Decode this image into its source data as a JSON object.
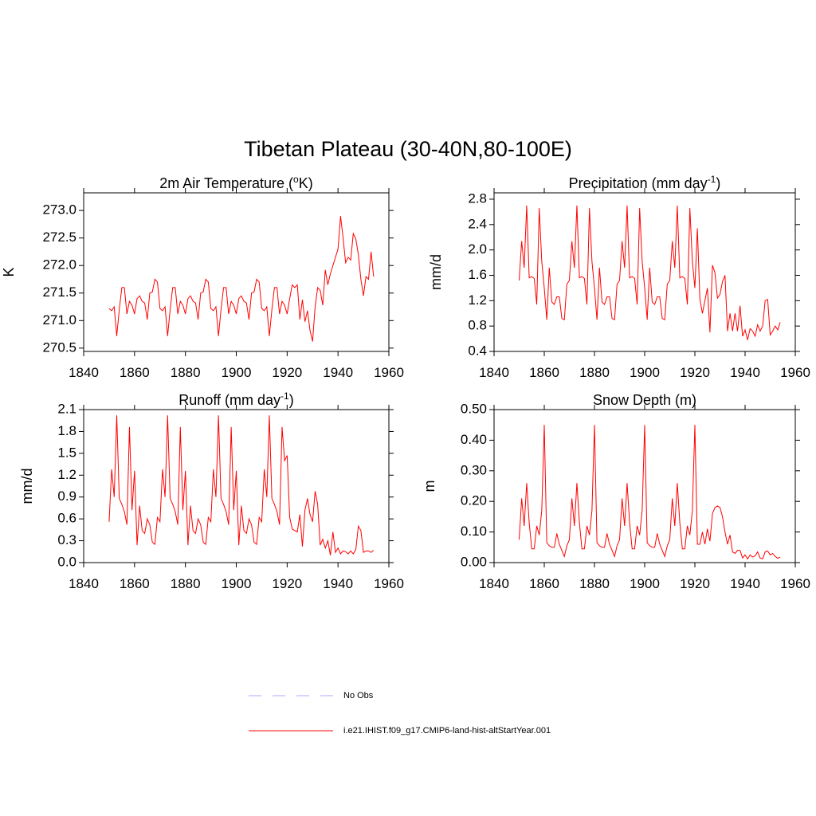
{
  "title": "Tibetan Plateau (30-40N,80-100E)",
  "legend": [
    {
      "name": "No Obs",
      "color": "#aaaaff",
      "dash": true
    },
    {
      "name": "i.e21.IHIST.f09_g17.CMIP6-land-hist-altStartYear.001",
      "color": "#ff0000",
      "dash": false
    }
  ],
  "chart_data": [
    {
      "type": "line",
      "title": [
        "2m Air Temperature (",
        "o",
        "K)"
      ],
      "y_label": "K",
      "x": [
        1850,
        1851,
        1852,
        1853,
        1854,
        1855,
        1856,
        1857,
        1858,
        1859,
        1860,
        1861,
        1862,
        1863,
        1864,
        1865,
        1866,
        1867,
        1868,
        1869,
        1870,
        1871,
        1872,
        1873,
        1874,
        1875,
        1876,
        1877,
        1878,
        1879,
        1880,
        1881,
        1882,
        1883,
        1884,
        1885,
        1886,
        1887,
        1888,
        1889,
        1890,
        1891,
        1892,
        1893,
        1894,
        1895,
        1896,
        1897,
        1898,
        1899,
        1900,
        1901,
        1902,
        1903,
        1904,
        1905,
        1906,
        1907,
        1908,
        1909,
        1910,
        1911,
        1912,
        1913,
        1914,
        1915,
        1916,
        1917,
        1918,
        1919,
        1920,
        1921,
        1922,
        1923,
        1924,
        1925,
        1926,
        1927,
        1928,
        1929,
        1930,
        1931,
        1932,
        1933,
        1934,
        1935,
        1936,
        1937,
        1938,
        1939,
        1940,
        1941,
        1942,
        1943,
        1944,
        1945,
        1946,
        1947,
        1948,
        1949,
        1950,
        1951,
        1952,
        1953,
        1954
      ],
      "series": [
        {
          "color": "#ff0000",
          "values": [
            271.22,
            271.18,
            271.25,
            270.72,
            271.2,
            271.6,
            271.6,
            271.12,
            271.35,
            271.28,
            271.12,
            271.4,
            271.45,
            271.35,
            271.32,
            271.02,
            271.5,
            271.52,
            271.75,
            271.7,
            271.22,
            271.18,
            271.25,
            270.72,
            271.2,
            271.6,
            271.6,
            271.12,
            271.35,
            271.28,
            271.12,
            271.4,
            271.45,
            271.35,
            271.32,
            271.02,
            271.5,
            271.52,
            271.75,
            271.7,
            271.22,
            271.18,
            271.25,
            270.72,
            271.2,
            271.6,
            271.6,
            271.12,
            271.35,
            271.28,
            271.12,
            271.4,
            271.45,
            271.35,
            271.32,
            271.02,
            271.5,
            271.52,
            271.75,
            271.7,
            271.22,
            271.18,
            271.25,
            270.72,
            271.2,
            271.6,
            271.6,
            271.12,
            271.35,
            271.28,
            271.12,
            271.4,
            271.65,
            271.6,
            271.65,
            271.02,
            271.38,
            270.98,
            271.18,
            270.82,
            270.62,
            271.25,
            271.6,
            271.55,
            271.28,
            271.92,
            271.65,
            271.85,
            272.0,
            272.15,
            272.3,
            272.9,
            272.5,
            272.05,
            272.15,
            272.1,
            272.58,
            272.48,
            272.2,
            271.75,
            271.45,
            271.8,
            271.75,
            272.25,
            271.8
          ]
        }
      ],
      "xlim": [
        1840,
        1960
      ],
      "xticks": [
        1840,
        1860,
        1880,
        1900,
        1920,
        1940,
        1960
      ],
      "ylim": [
        270.44,
        273.32
      ],
      "yticks": [
        270.5,
        {
          "value": 271,
          "label": "271.0"
        },
        271.5,
        {
          "value": 272,
          "label": "272.0"
        },
        272.5,
        {
          "value": 273,
          "label": "273.0"
        }
      ]
    },
    {
      "type": "line",
      "title": [
        "Precipitation (mm day",
        "-1",
        ")"
      ],
      "y_label": "mm/d",
      "x": [
        1850,
        1851,
        1852,
        1853,
        1854,
        1855,
        1856,
        1857,
        1858,
        1859,
        1860,
        1861,
        1862,
        1863,
        1864,
        1865,
        1866,
        1867,
        1868,
        1869,
        1870,
        1871,
        1872,
        1873,
        1874,
        1875,
        1876,
        1877,
        1878,
        1879,
        1880,
        1881,
        1882,
        1883,
        1884,
        1885,
        1886,
        1887,
        1888,
        1889,
        1890,
        1891,
        1892,
        1893,
        1894,
        1895,
        1896,
        1897,
        1898,
        1899,
        1900,
        1901,
        1902,
        1903,
        1904,
        1905,
        1906,
        1907,
        1908,
        1909,
        1910,
        1911,
        1912,
        1913,
        1914,
        1915,
        1916,
        1917,
        1918,
        1919,
        1920,
        1921,
        1922,
        1923,
        1924,
        1925,
        1926,
        1927,
        1928,
        1929,
        1930,
        1931,
        1932,
        1933,
        1934,
        1935,
        1936,
        1937,
        1938,
        1939,
        1940,
        1941,
        1942,
        1943,
        1944,
        1945,
        1946,
        1947,
        1948,
        1949,
        1950,
        1951,
        1952,
        1953,
        1954
      ],
      "series": [
        {
          "color": "#ff0000",
          "values": [
            1.52,
            2.14,
            1.72,
            2.7,
            1.56,
            1.58,
            1.55,
            1.14,
            2.66,
            1.82,
            1.4,
            0.9,
            1.72,
            1.18,
            1.14,
            1.26,
            1.26,
            0.92,
            0.9,
            1.46,
            1.52,
            2.14,
            1.72,
            2.7,
            1.56,
            1.58,
            1.55,
            1.14,
            2.66,
            1.82,
            1.4,
            0.9,
            1.72,
            1.18,
            1.14,
            1.26,
            1.26,
            0.92,
            0.9,
            1.46,
            1.52,
            2.14,
            1.72,
            2.7,
            1.56,
            1.58,
            1.55,
            1.14,
            2.66,
            1.82,
            1.4,
            0.9,
            1.72,
            1.18,
            1.14,
            1.26,
            1.26,
            0.92,
            0.9,
            1.46,
            1.52,
            2.14,
            1.72,
            2.7,
            1.56,
            1.58,
            1.55,
            1.14,
            2.66,
            1.82,
            1.4,
            2.34,
            1.22,
            1.0,
            1.2,
            1.4,
            0.7,
            1.76,
            1.64,
            1.24,
            1.3,
            1.5,
            1.6,
            0.72,
            1.0,
            0.72,
            1.0,
            0.72,
            1.12,
            0.64,
            0.74,
            0.58,
            0.76,
            0.72,
            0.64,
            0.82,
            0.72,
            0.8,
            1.2,
            1.22,
            0.66,
            0.72,
            0.8,
            0.74,
            0.86
          ]
        }
      ],
      "xlim": [
        1840,
        1960
      ],
      "xticks": [
        1840,
        1860,
        1880,
        1900,
        1920,
        1940,
        1960
      ],
      "ylim": [
        0.4,
        2.9
      ],
      "yticks": [
        0.4,
        0.8,
        1.2,
        1.6,
        {
          "value": 2,
          "label": "2.0"
        },
        2.4,
        2.8
      ]
    },
    {
      "type": "line",
      "title": [
        "Runoff (mm day",
        "-1",
        ")"
      ],
      "y_label": "mm/d",
      "x": [
        1850,
        1851,
        1852,
        1853,
        1854,
        1855,
        1856,
        1857,
        1858,
        1859,
        1860,
        1861,
        1862,
        1863,
        1864,
        1865,
        1866,
        1867,
        1868,
        1869,
        1870,
        1871,
        1872,
        1873,
        1874,
        1875,
        1876,
        1877,
        1878,
        1879,
        1880,
        1881,
        1882,
        1883,
        1884,
        1885,
        1886,
        1887,
        1888,
        1889,
        1890,
        1891,
        1892,
        1893,
        1894,
        1895,
        1896,
        1897,
        1898,
        1899,
        1900,
        1901,
        1902,
        1903,
        1904,
        1905,
        1906,
        1907,
        1908,
        1909,
        1910,
        1911,
        1912,
        1913,
        1914,
        1915,
        1916,
        1917,
        1918,
        1919,
        1920,
        1921,
        1922,
        1923,
        1924,
        1925,
        1926,
        1927,
        1928,
        1929,
        1930,
        1931,
        1932,
        1933,
        1934,
        1935,
        1936,
        1937,
        1938,
        1939,
        1940,
        1941,
        1942,
        1943,
        1944,
        1945,
        1946,
        1947,
        1948,
        1949,
        1950,
        1951,
        1952,
        1953,
        1954
      ],
      "series": [
        {
          "color": "#ff0000",
          "values": [
            0.56,
            1.28,
            0.9,
            2.02,
            0.88,
            0.8,
            0.7,
            0.52,
            1.86,
            0.72,
            1.26,
            0.24,
            0.78,
            0.44,
            0.4,
            0.6,
            0.52,
            0.28,
            0.25,
            0.62,
            0.56,
            1.28,
            0.9,
            2.02,
            0.88,
            0.8,
            0.7,
            0.52,
            1.86,
            0.72,
            1.26,
            0.24,
            0.78,
            0.44,
            0.4,
            0.6,
            0.52,
            0.28,
            0.25,
            0.62,
            0.56,
            1.28,
            0.9,
            2.02,
            0.88,
            0.8,
            0.7,
            0.52,
            1.86,
            0.72,
            1.26,
            0.24,
            0.78,
            0.44,
            0.4,
            0.6,
            0.52,
            0.28,
            0.25,
            0.62,
            0.56,
            1.28,
            0.9,
            2.02,
            0.88,
            0.8,
            0.7,
            0.52,
            1.86,
            1.4,
            1.47,
            0.62,
            0.46,
            0.44,
            0.42,
            0.66,
            0.22,
            0.72,
            0.88,
            0.66,
            0.56,
            0.98,
            0.8,
            0.24,
            0.32,
            0.2,
            0.3,
            0.1,
            0.42,
            0.14,
            0.2,
            0.12,
            0.16,
            0.15,
            0.12,
            0.16,
            0.12,
            0.18,
            0.5,
            0.44,
            0.14,
            0.16,
            0.16,
            0.14,
            0.17
          ]
        }
      ],
      "xlim": [
        1840,
        1960
      ],
      "xticks": [
        1840,
        1860,
        1880,
        1900,
        1920,
        1940,
        1960
      ],
      "ylim": [
        0,
        2.1
      ],
      "yticks": [
        {
          "value": 0,
          "label": "0.0"
        },
        0.3,
        0.6,
        0.9,
        1.2,
        1.5,
        1.8,
        2.1
      ]
    },
    {
      "type": "line",
      "title": [
        "Snow Depth (m)"
      ],
      "y_label": "m",
      "x": [
        1850,
        1851,
        1852,
        1853,
        1854,
        1855,
        1856,
        1857,
        1858,
        1859,
        1860,
        1861,
        1862,
        1863,
        1864,
        1865,
        1866,
        1867,
        1868,
        1869,
        1870,
        1871,
        1872,
        1873,
        1874,
        1875,
        1876,
        1877,
        1878,
        1879,
        1880,
        1881,
        1882,
        1883,
        1884,
        1885,
        1886,
        1887,
        1888,
        1889,
        1890,
        1891,
        1892,
        1893,
        1894,
        1895,
        1896,
        1897,
        1898,
        1899,
        1900,
        1901,
        1902,
        1903,
        1904,
        1905,
        1906,
        1907,
        1908,
        1909,
        1910,
        1911,
        1912,
        1913,
        1914,
        1915,
        1916,
        1917,
        1918,
        1919,
        1920,
        1921,
        1922,
        1923,
        1924,
        1925,
        1926,
        1927,
        1928,
        1929,
        1930,
        1931,
        1932,
        1933,
        1934,
        1935,
        1936,
        1937,
        1938,
        1939,
        1940,
        1941,
        1942,
        1943,
        1944,
        1945,
        1946,
        1947,
        1948,
        1949,
        1950,
        1951,
        1952,
        1953,
        1954
      ],
      "series": [
        {
          "color": "#ff0000",
          "values": [
            0.075,
            0.21,
            0.12,
            0.26,
            0.13,
            0.045,
            0.045,
            0.12,
            0.09,
            0.17,
            0.45,
            0.065,
            0.055,
            0.05,
            0.05,
            0.095,
            0.06,
            0.04,
            0.02,
            0.055,
            0.075,
            0.21,
            0.12,
            0.26,
            0.13,
            0.045,
            0.045,
            0.12,
            0.09,
            0.17,
            0.45,
            0.065,
            0.055,
            0.05,
            0.05,
            0.095,
            0.06,
            0.04,
            0.02,
            0.055,
            0.075,
            0.21,
            0.12,
            0.26,
            0.13,
            0.045,
            0.045,
            0.12,
            0.09,
            0.17,
            0.45,
            0.065,
            0.055,
            0.05,
            0.05,
            0.095,
            0.06,
            0.04,
            0.02,
            0.055,
            0.075,
            0.21,
            0.12,
            0.26,
            0.13,
            0.045,
            0.045,
            0.12,
            0.09,
            0.17,
            0.45,
            0.06,
            0.06,
            0.1,
            0.06,
            0.11,
            0.07,
            0.16,
            0.18,
            0.185,
            0.18,
            0.15,
            0.1,
            0.06,
            0.09,
            0.035,
            0.03,
            0.04,
            0.04,
            0.015,
            0.025,
            0.012,
            0.025,
            0.018,
            0.022,
            0.035,
            0.015,
            0.012,
            0.035,
            0.038,
            0.025,
            0.03,
            0.02,
            0.014,
            0.018
          ]
        }
      ],
      "xlim": [
        1840,
        1960
      ],
      "xticks": [
        1840,
        1860,
        1880,
        1900,
        1920,
        1940,
        1960
      ],
      "ylim": [
        0,
        0.5
      ],
      "yticks": [
        {
          "value": 0,
          "label": "0.00"
        },
        {
          "value": 0.1,
          "label": "0.10"
        },
        {
          "value": 0.2,
          "label": "0.20"
        },
        {
          "value": 0.3,
          "label": "0.30"
        },
        {
          "value": 0.4,
          "label": "0.40"
        },
        {
          "value": 0.5,
          "label": "0.50"
        }
      ]
    }
  ]
}
